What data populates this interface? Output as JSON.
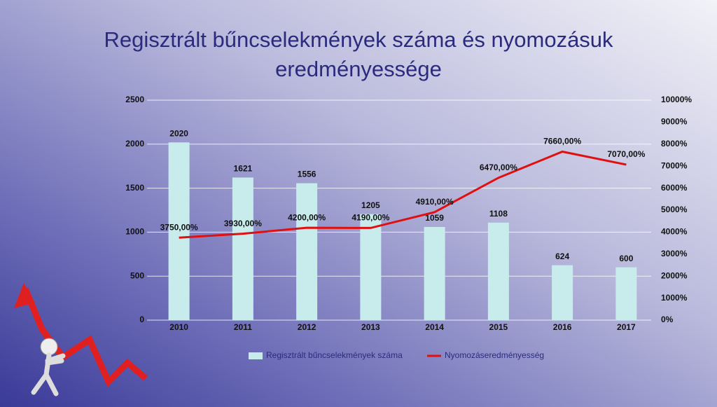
{
  "chart_data": {
    "type": "bar-line",
    "title": "Regisztrált bűncselekmények száma és nyomozásuk eredményessége",
    "categories": [
      "2010",
      "2011",
      "2012",
      "2013",
      "2014",
      "2015",
      "2016",
      "2017"
    ],
    "series": [
      {
        "name": "Regisztrált bűncselekmények száma",
        "type": "bar",
        "color": "#c8ecec",
        "values": [
          2020,
          1621,
          1556,
          1205,
          1059,
          1108,
          624,
          600
        ]
      },
      {
        "name": "Nyomozáseredményesség",
        "type": "line",
        "axis": "y2",
        "color": "#e01010",
        "values": [
          3750,
          3930,
          4200,
          4190,
          4910,
          6470,
          7660,
          7070
        ],
        "value_labels": [
          "3750,00%",
          "3930,00%",
          "4200,00%",
          "4190,00%",
          "4910,00%",
          "6470,00%",
          "7660,00%",
          "7070,00%"
        ]
      }
    ],
    "ylim": [
      0,
      2500
    ],
    "yticks": [
      0,
      500,
      1000,
      1500,
      2000,
      2500
    ],
    "y2lim": [
      0,
      10000
    ],
    "y2ticks": [
      {
        "value": 0,
        "label": "0%"
      },
      {
        "value": 1000,
        "label": "1000%"
      },
      {
        "value": 2000,
        "label": "2000%"
      },
      {
        "value": 3000,
        "label": "3000%"
      },
      {
        "value": 4000,
        "label": "4000%"
      },
      {
        "value": 5000,
        "label": "5000%"
      },
      {
        "value": 6000,
        "label": "6000%"
      },
      {
        "value": 7000,
        "label": "7000%"
      },
      {
        "value": 8000,
        "label": "8000%"
      },
      {
        "value": 9000,
        "label": "9000%"
      },
      {
        "value": 10000,
        "label": "10000%"
      }
    ],
    "grid": true,
    "legend": "bottom"
  }
}
